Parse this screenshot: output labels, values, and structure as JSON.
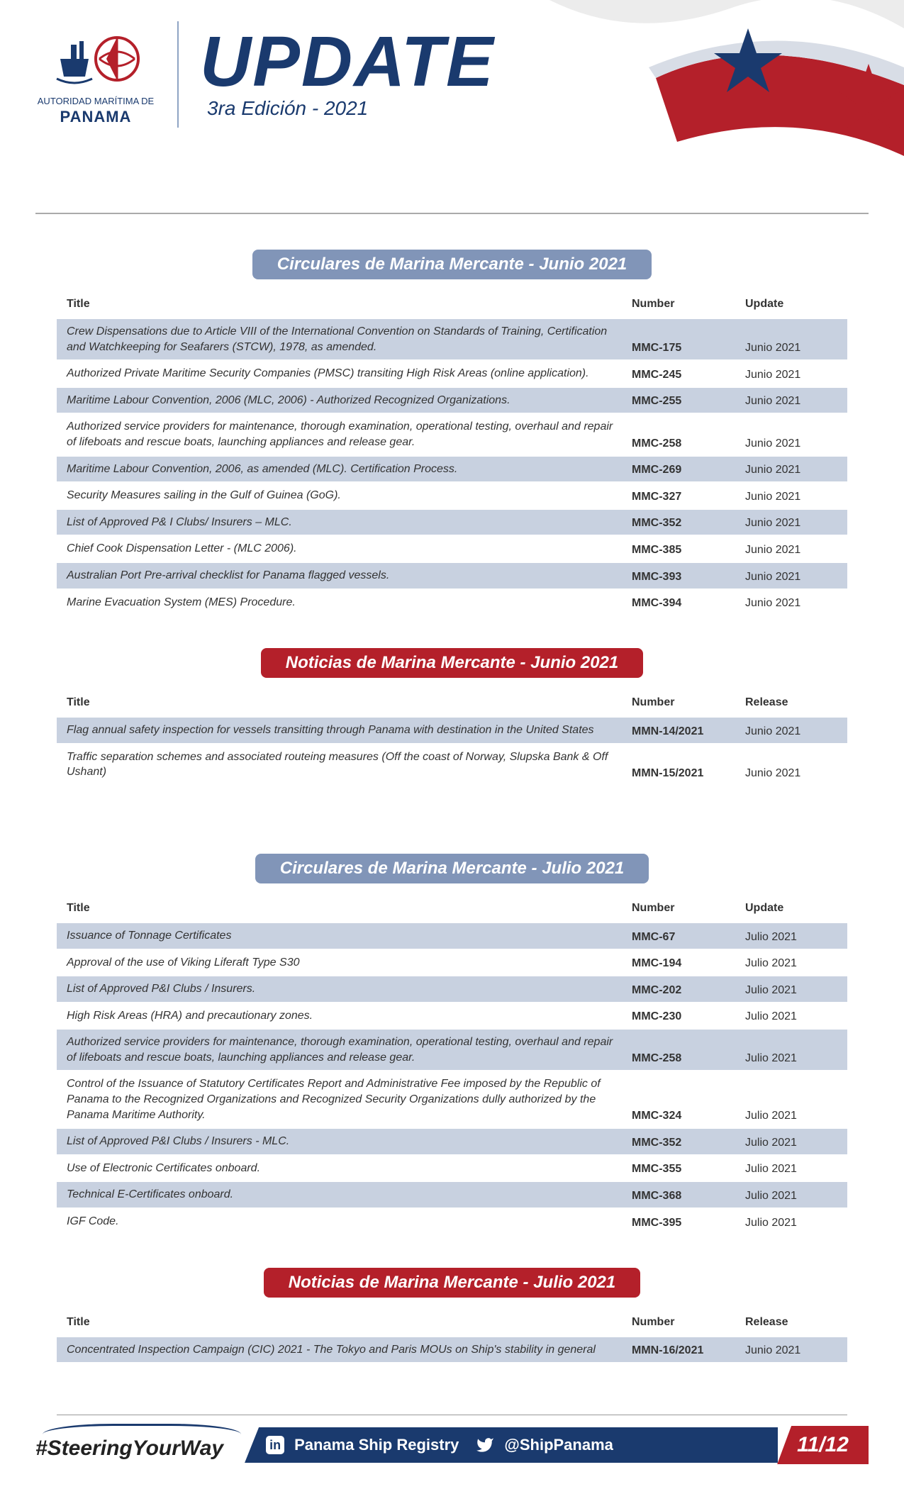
{
  "header": {
    "org_line1": "AUTORIDAD MARÍTIMA DE",
    "org_line2": "PANAMA",
    "title": "UPDATE",
    "subtitle": "3ra Edición  - 2021"
  },
  "sections": [
    {
      "pill": "Circulares de Marina Mercante - Junio 2021",
      "pill_color": "blue",
      "col_title": "Title",
      "col_number": "Number",
      "col_update": "Update",
      "rows": [
        {
          "t": "Crew Dispensations due to Article VIII of the International Convention on Standards of Training, Certification and Watchkeeping for Seafarers (STCW), 1978, as amended.",
          "n": "MMC-175",
          "u": "Junio 2021",
          "s": true
        },
        {
          "t": "Authorized Private Maritime Security Companies (PMSC) transiting High Risk Areas (online application).",
          "n": "MMC-245",
          "u": "Junio 2021",
          "s": false
        },
        {
          "t": "Maritime Labour Convention, 2006 (MLC, 2006) - Authorized Recognized Organizations.",
          "n": "MMC-255",
          "u": "Junio 2021",
          "s": true
        },
        {
          "t": "Authorized service providers for maintenance, thorough examination, operational testing, overhaul and repair of lifeboats and rescue boats, launching appliances and release gear.",
          "n": "MMC-258",
          "u": "Junio 2021",
          "s": false
        },
        {
          "t": "Maritime Labour Convention, 2006, as amended (MLC). Certification Process.",
          "n": "MMC-269",
          "u": "Junio 2021",
          "s": true
        },
        {
          "t": "Security Measures sailing in the Gulf of Guinea (GoG).",
          "n": "MMC-327",
          "u": "Junio 2021",
          "s": false
        },
        {
          "t": "List of Approved P& I Clubs/ Insurers – MLC.",
          "n": "MMC-352",
          "u": "Junio 2021",
          "s": true
        },
        {
          "t": "Chief Cook Dispensation Letter - (MLC 2006).",
          "n": "MMC-385",
          "u": "Junio 2021",
          "s": false
        },
        {
          "t": "Australian Port Pre-arrival checklist for Panama flagged vessels.",
          "n": "MMC-393",
          "u": "Junio 2021",
          "s": true
        },
        {
          "t": "Marine Evacuation System (MES) Procedure.",
          "n": "MMC-394",
          "u": "Junio 2021",
          "s": false
        }
      ]
    },
    {
      "pill": "Noticias de Marina Mercante - Junio 2021",
      "pill_color": "red",
      "col_title": "Title",
      "col_number": "Number",
      "col_update": "Release",
      "rows": [
        {
          "t": "Flag annual safety inspection for vessels transitting through Panama with destination in the United States",
          "n": "MMN-14/2021",
          "u": "Junio 2021",
          "s": true
        },
        {
          "t": "Traffic separation schemes and associated routeing measures (Off the coast of Norway, Slupska Bank & Off Ushant)",
          "n": "MMN-15/2021",
          "u": "Junio 2021",
          "s": false
        }
      ]
    },
    {
      "pill": "Circulares de Marina Mercante - Julio 2021",
      "pill_color": "blue",
      "col_title": "Title",
      "col_number": "Number",
      "col_update": "Update",
      "rows": [
        {
          "t": "Issuance of Tonnage Certificates",
          "n": "MMC-67",
          "u": "Julio 2021",
          "s": true
        },
        {
          "t": "Approval of the use of Viking Liferaft Type S30",
          "n": "MMC-194",
          "u": "Julio 2021",
          "s": false
        },
        {
          "t": "List of Approved P&I Clubs / Insurers.",
          "n": "MMC-202",
          "u": "Julio 2021",
          "s": true
        },
        {
          "t": "High Risk Areas (HRA) and precautionary zones.",
          "n": "MMC-230",
          "u": "Julio 2021",
          "s": false
        },
        {
          "t": "Authorized service providers for maintenance, thorough examination, operational testing, overhaul and repair of lifeboats and rescue boats, launching appliances and release gear.",
          "n": "MMC-258",
          "u": "Julio 2021",
          "s": true
        },
        {
          "t": "Control of the Issuance of Statutory Certificates Report and Administrative Fee imposed by the Republic of Panama to the Recognized Organizations and Recognized Security Organizations dully authorized by the Panama Maritime Authority.",
          "n": "MMC-324",
          "u": "Julio 2021",
          "s": false
        },
        {
          "t": "List of Approved P&I Clubs / Insurers - MLC.",
          "n": "MMC-352",
          "u": "Julio 2021",
          "s": true
        },
        {
          "t": "Use of Electronic Certificates onboard.",
          "n": "MMC-355",
          "u": "Julio 2021",
          "s": false
        },
        {
          "t": "Technical E-Certificates onboard.",
          "n": "MMC-368",
          "u": "Julio 2021",
          "s": true
        },
        {
          "t": "IGF Code.",
          "n": "MMC-395",
          "u": "Julio 2021",
          "s": false
        }
      ]
    },
    {
      "pill": "Noticias de Marina Mercante - Julio 2021",
      "pill_color": "red",
      "col_title": "Title",
      "col_number": "Number",
      "col_update": "Release",
      "rows": [
        {
          "t": "Concentrated Inspection Campaign (CIC) 2021 - The Tokyo and Paris MOUs on Ship's stability in general",
          "n": "MMN-16/2021",
          "u": "Junio 2021",
          "s": true
        }
      ]
    }
  ],
  "footer": {
    "hashtag": "#SteeringYourWay",
    "linkedin_label": "Panama Ship Registry",
    "twitter_handle": "@ShipPanama",
    "page": "11/12"
  },
  "colors": {
    "navy": "#1a3a6e",
    "red": "#b4202a",
    "pill_blue": "#8195b8",
    "row_shade": "#c8d1e0"
  }
}
